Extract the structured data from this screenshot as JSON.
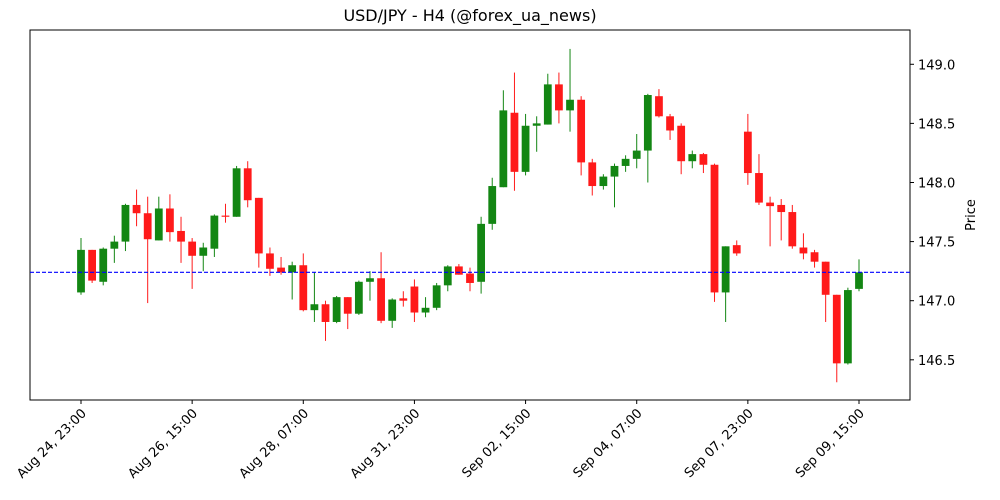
{
  "chart_data": {
    "type": "candlestick",
    "title": "USD/JPY - H4 (@forex_ua_news)",
    "y_label": "Price",
    "categories": [
      "Aug 24, 23:00",
      null,
      null,
      null,
      null,
      null,
      null,
      null,
      null,
      null,
      "Aug 26, 15:00",
      null,
      null,
      null,
      null,
      null,
      null,
      null,
      null,
      null,
      "Aug 28, 07:00",
      null,
      null,
      null,
      null,
      null,
      null,
      null,
      null,
      null,
      "Aug 31, 23:00",
      null,
      null,
      null,
      null,
      null,
      null,
      null,
      null,
      null,
      "Sep 02, 15:00",
      null,
      null,
      null,
      null,
      null,
      null,
      null,
      null,
      null,
      "Sep 04, 07:00",
      null,
      null,
      null,
      null,
      null,
      null,
      null,
      null,
      null,
      "Sep 07, 23:00",
      null,
      null,
      null,
      null,
      null,
      null,
      null,
      null,
      null,
      "Sep 09, 15:00"
    ],
    "open": [
      147.07,
      147.43,
      147.16,
      147.44,
      147.5,
      147.81,
      147.74,
      147.51,
      147.78,
      147.59,
      147.5,
      147.38,
      147.44,
      147.72,
      147.71,
      148.12,
      147.87,
      147.4,
      147.28,
      147.24,
      147.3,
      146.92,
      146.97,
      146.82,
      147.03,
      146.89,
      147.16,
      147.19,
      146.83,
      147.02,
      147.12,
      146.9,
      146.94,
      147.13,
      147.29,
      147.23,
      147.16,
      147.65,
      147.96,
      148.59,
      148.09,
      148.48,
      148.49,
      148.83,
      148.61,
      148.7,
      148.17,
      147.97,
      148.05,
      148.14,
      148.2,
      148.27,
      148.73,
      148.56,
      148.48,
      148.18,
      148.24,
      148.15,
      147.07,
      147.47,
      148.43,
      148.08,
      147.83,
      147.81,
      147.75,
      147.45,
      147.41,
      147.33,
      147.05,
      146.47,
      147.1
    ],
    "high": [
      147.53,
      147.43,
      147.45,
      147.55,
      147.82,
      147.94,
      147.88,
      147.88,
      147.9,
      147.71,
      147.53,
      147.49,
      147.73,
      147.82,
      148.14,
      148.18,
      147.87,
      147.45,
      147.37,
      147.33,
      147.4,
      147.24,
      147.0,
      147.04,
      147.03,
      147.17,
      147.25,
      147.41,
      147.02,
      147.08,
      147.18,
      147.03,
      147.15,
      147.3,
      147.31,
      147.28,
      147.71,
      148.04,
      148.78,
      148.93,
      148.58,
      148.56,
      148.92,
      148.93,
      149.13,
      148.73,
      148.2,
      148.07,
      148.16,
      148.23,
      148.41,
      148.75,
      148.79,
      148.58,
      148.5,
      148.27,
      148.25,
      148.16,
      147.46,
      147.51,
      148.58,
      148.24,
      147.88,
      147.86,
      147.81,
      147.57,
      147.43,
      147.33,
      147.05,
      147.11,
      147.35
    ],
    "low": [
      147.05,
      147.15,
      147.13,
      147.32,
      147.42,
      147.63,
      146.98,
      147.51,
      147.5,
      147.32,
      147.1,
      147.25,
      147.37,
      147.66,
      147.71,
      147.79,
      147.28,
      147.21,
      147.22,
      147.01,
      146.91,
      146.82,
      146.66,
      146.81,
      146.76,
      146.88,
      147.0,
      146.81,
      146.77,
      146.95,
      146.82,
      146.86,
      146.92,
      147.08,
      147.22,
      147.08,
      147.06,
      147.6,
      147.96,
      147.93,
      148.06,
      148.26,
      148.49,
      148.5,
      148.43,
      148.06,
      147.89,
      147.94,
      147.79,
      148.09,
      148.12,
      148.0,
      148.55,
      148.36,
      148.07,
      148.12,
      148.08,
      146.99,
      146.82,
      147.38,
      147.98,
      147.81,
      147.46,
      147.51,
      147.44,
      147.35,
      147.28,
      146.82,
      146.31,
      146.46,
      147.08
    ],
    "close": [
      147.43,
      147.17,
      147.44,
      147.5,
      147.81,
      147.74,
      147.52,
      147.78,
      147.58,
      147.5,
      147.38,
      147.45,
      147.72,
      147.71,
      148.12,
      147.85,
      147.4,
      147.27,
      147.24,
      147.3,
      146.92,
      146.97,
      146.82,
      147.03,
      146.89,
      147.16,
      147.19,
      146.83,
      147.01,
      147.0,
      146.9,
      146.94,
      147.13,
      147.29,
      147.22,
      147.15,
      147.65,
      147.97,
      148.61,
      148.09,
      148.48,
      148.5,
      148.83,
      148.61,
      148.7,
      148.17,
      147.97,
      148.05,
      148.14,
      148.2,
      148.27,
      148.74,
      148.56,
      148.44,
      148.18,
      148.24,
      148.15,
      147.07,
      147.46,
      147.4,
      148.08,
      147.83,
      147.8,
      147.75,
      147.46,
      147.4,
      147.33,
      147.05,
      146.47,
      147.09,
      147.24
    ],
    "up_color": "#138613",
    "down_color": "#ff1a1a",
    "hline": {
      "value": 147.24,
      "color": "#0000ff"
    },
    "ylim": [
      146.16,
      149.29
    ],
    "yticks": [
      146.5,
      {
        "value": 147,
        "label": "147.0"
      },
      147.5,
      {
        "value": 148,
        "label": "148.0"
      },
      148.5,
      {
        "value": 149,
        "label": "149.0"
      }
    ]
  }
}
